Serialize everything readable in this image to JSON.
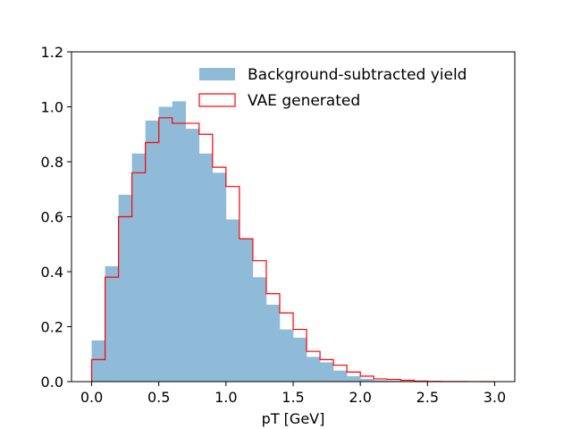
{
  "chart_data": {
    "type": "bar",
    "xlabel": "pT [GeV]",
    "ylabel": "",
    "xlim": [
      -0.15,
      3.15
    ],
    "ylim": [
      0,
      1.2
    ],
    "x_ticks": [
      "0.0",
      "0.5",
      "1.0",
      "1.5",
      "2.0",
      "2.5",
      "3.0"
    ],
    "y_ticks": [
      "0.0",
      "0.2",
      "0.4",
      "0.6",
      "0.8",
      "1.0",
      "1.2"
    ],
    "bin_edges": [
      0.0,
      0.1,
      0.2,
      0.3,
      0.4,
      0.5,
      0.6,
      0.7,
      0.8,
      0.9,
      1.0,
      1.1,
      1.2,
      1.3,
      1.4,
      1.5,
      1.6,
      1.7,
      1.8,
      1.9,
      2.0,
      2.1,
      2.2,
      2.3,
      2.4,
      2.5,
      2.6,
      2.7,
      2.8,
      2.9,
      3.0
    ],
    "legend_position": "upper-right",
    "series": [
      {
        "name": "Background-subtracted yield",
        "style": "filled",
        "color": "#8fbad8",
        "values": [
          0.15,
          0.42,
          0.68,
          0.83,
          0.95,
          1.0,
          1.02,
          0.92,
          0.83,
          0.76,
          0.59,
          0.52,
          0.38,
          0.28,
          0.19,
          0.16,
          0.09,
          0.07,
          0.04,
          0.02,
          0.01,
          0.005,
          0.003,
          0.002,
          0.001,
          0.0005,
          0.0003,
          0.0002,
          0.0001,
          0.0001
        ]
      },
      {
        "name": "VAE generated",
        "style": "step",
        "color": "#ff0000",
        "values": [
          0.08,
          0.38,
          0.6,
          0.76,
          0.87,
          0.96,
          0.94,
          0.94,
          0.9,
          0.78,
          0.71,
          0.52,
          0.44,
          0.32,
          0.25,
          0.19,
          0.11,
          0.08,
          0.06,
          0.035,
          0.02,
          0.01,
          0.008,
          0.005,
          0.002,
          0.001,
          0.0005,
          0.0003,
          0.0002,
          0.0001
        ]
      }
    ]
  }
}
